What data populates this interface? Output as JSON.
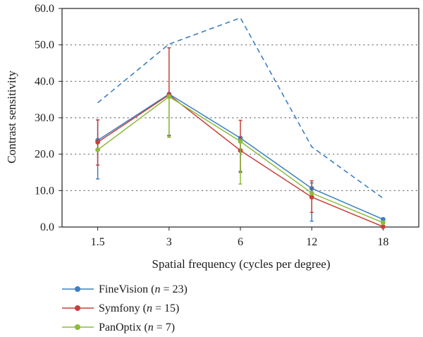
{
  "chart_data": {
    "type": "line",
    "title": "",
    "xlabel": "Spatial frequency (cycles per degree)",
    "ylabel": "Contrast sensitivity",
    "categories": [
      "1.5",
      "3",
      "6",
      "12",
      "18"
    ],
    "ylim": [
      0,
      60
    ],
    "yticks": [
      "0.0",
      "10.0",
      "20.0",
      "30.0",
      "40.0",
      "50.0",
      "60.0"
    ],
    "grid": "horizontal dotted",
    "legend_position": "bottom-left",
    "series": [
      {
        "name": "FineVision (n = 23)",
        "legend_prefix": "FineVision (",
        "legend_var": "n",
        "legend_suffix": " = 23)",
        "color": "#3a7fc4",
        "values": [
          23.8,
          36.5,
          24.4,
          10.6,
          2.1
        ],
        "error_low": [
          13.2,
          25.2,
          15.3,
          1.6,
          null
        ],
        "error_high": [
          29.4,
          36.5,
          24.4,
          12.1,
          null
        ]
      },
      {
        "name": "Symfony (n = 15)",
        "legend_prefix": "Symfony (",
        "legend_var": "n",
        "legend_suffix": " = 15)",
        "color": "#c8403a",
        "values": [
          23.3,
          36.3,
          21.0,
          8.2,
          0.1
        ],
        "error_low": [
          17.0,
          25.0,
          15.0,
          4.0,
          null
        ],
        "error_high": [
          29.4,
          49.2,
          29.3,
          12.7,
          null
        ]
      },
      {
        "name": "PanOptix (n = 7)",
        "legend_prefix": "PanOptix (",
        "legend_var": "n",
        "legend_suffix": " = 7)",
        "color": "#8dbb3a",
        "values": [
          21.2,
          35.8,
          23.5,
          9.3,
          1.2
        ],
        "error_low": [
          null,
          24.6,
          11.8,
          null,
          null
        ],
        "error_high": [
          null,
          35.8,
          23.5,
          null,
          null
        ]
      },
      {
        "name": "",
        "style": "dashed",
        "color": "#3a7fc4",
        "values": [
          34.1,
          50.2,
          57.4,
          22.0,
          7.9
        ]
      }
    ]
  }
}
